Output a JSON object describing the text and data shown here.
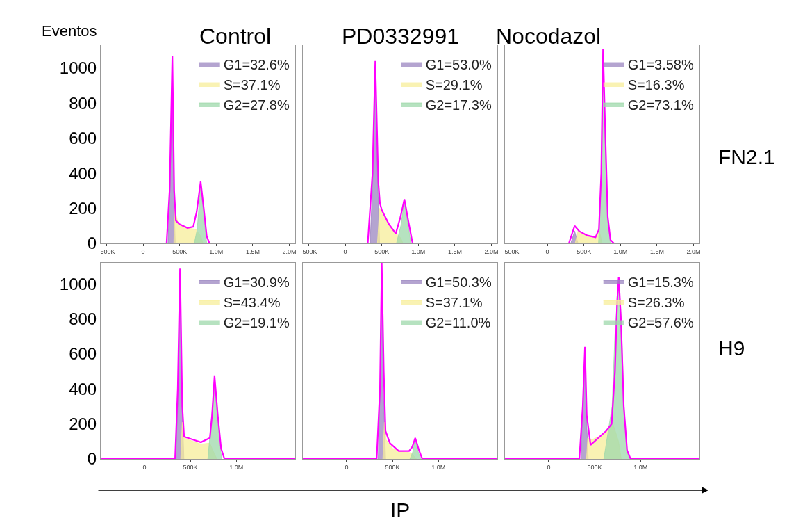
{
  "chart_data": [
    {
      "type": "area",
      "title": "Control",
      "ylabel": "Eventos",
      "legend": "top right",
      "xlim": [
        -580000,
        2080000
      ],
      "xticks": [
        {
          "value": -500000,
          "label": "-500K"
        },
        0,
        {
          "value": 500000,
          "label": "500K"
        },
        {
          "value": 1000000,
          "label": "1.0M"
        },
        {
          "value": 1500000,
          "label": "1.5M"
        },
        {
          "value": 2000000,
          "label": "2.0M"
        }
      ],
      "ylim": [
        0,
        1130
      ],
      "yticks": [
        0,
        200,
        400,
        600,
        800,
        1000
      ],
      "series": [
        {
          "name": "G1=32.6%",
          "color": "#9b86c0",
          "x": [
            340000,
            370000,
            400000,
            415000,
            440000
          ],
          "values": [
            0,
            350,
            1000,
            350,
            0
          ]
        },
        {
          "name": "S=37.1%",
          "color": "#f7ee9a",
          "x": [
            420000,
            430000,
            480000,
            600000,
            720000,
            790000,
            820000
          ],
          "values": [
            0,
            200,
            110,
            88,
            80,
            40,
            0
          ]
        },
        {
          "name": "G2=27.8%",
          "color": "#9ed8ab",
          "x": [
            700000,
            740000,
            787000,
            830000,
            870000
          ],
          "values": [
            0,
            80,
            340,
            150,
            0
          ]
        },
        {
          "type": "line",
          "color": "#ff00ff",
          "x": [
            -580000,
            321000,
            362000,
            400000,
            425000,
            448000,
            495000,
            607000,
            686000,
            733000,
            787000,
            829000,
            870000,
            908000,
            2080000
          ],
          "values": [
            0,
            0,
            300,
            1070,
            300,
            130,
            110,
            88,
            95,
            180,
            352,
            200,
            40,
            0,
            0
          ]
        }
      ]
    },
    {
      "type": "area",
      "title": "PD0332991",
      "legend": "top right",
      "tick_labels": "x",
      "xlim": [
        -580000,
        2080000
      ],
      "xticks": [
        {
          "value": -500000,
          "label": "-500K"
        },
        0,
        {
          "value": 500000,
          "label": "500K"
        },
        {
          "value": 1000000,
          "label": "1.0M"
        },
        {
          "value": 1500000,
          "label": "1.5M"
        },
        {
          "value": 2000000,
          "label": "2.0M"
        }
      ],
      "ylim": [
        0,
        1130
      ],
      "yticks": [
        0,
        200,
        400,
        600,
        800,
        1000
      ],
      "series": [
        {
          "name": "G1=53.0%",
          "color": "#9b86c0",
          "x": [
            340000,
            380000,
            411000,
            440000,
            470000
          ],
          "values": [
            0,
            400,
            1010,
            400,
            0
          ]
        },
        {
          "name": "S=29.1%",
          "color": "#f7ee9a",
          "x": [
            440000,
            470000,
            500000,
            600000,
            700000,
            760000,
            790000
          ],
          "values": [
            0,
            200,
            185,
            105,
            55,
            30,
            0
          ]
        },
        {
          "name": "G2=17.3%",
          "color": "#9ed8ab",
          "x": [
            700000,
            760000,
            809000,
            860000,
            900000
          ],
          "values": [
            0,
            100,
            240,
            100,
            0
          ]
        },
        {
          "type": "line",
          "color": "#ff00ff",
          "x": [
            -580000,
            308000,
            373000,
            411000,
            452000,
            474000,
            500000,
            596000,
            691000,
            755000,
            809000,
            866000,
            921000,
            2080000
          ],
          "values": [
            0,
            0,
            400,
            1040,
            350,
            230,
            190,
            110,
            56,
            150,
            252,
            120,
            0,
            0
          ]
        }
      ]
    },
    {
      "type": "area",
      "title": "Nocodazol",
      "legend": "top right",
      "tick_labels": "x",
      "annotations": [
        "FN2.1"
      ],
      "xlim": [
        -580000,
        2080000
      ],
      "xticks": [
        {
          "value": -500000,
          "label": "-500K"
        },
        0,
        {
          "value": 500000,
          "label": "500K"
        },
        {
          "value": 1000000,
          "label": "1.0M"
        },
        {
          "value": 1500000,
          "label": "1.5M"
        },
        {
          "value": 2000000,
          "label": "2.0M"
        }
      ],
      "ylim": [
        0,
        1130
      ],
      "yticks": [
        0,
        200,
        400,
        600,
        800,
        1000
      ],
      "series": [
        {
          "name": "G1=3.58%",
          "color": "#9b86c0",
          "x": [
            320000,
            373000,
            420000
          ],
          "values": [
            0,
            70,
            0
          ]
        },
        {
          "name": "S=16.3%",
          "color": "#f7ee9a",
          "x": [
            380000,
            420000,
            500000,
            660000,
            705000,
            750000
          ],
          "values": [
            0,
            70,
            50,
            35,
            81,
            0
          ]
        },
        {
          "name": "G2=73.1%",
          "color": "#9ed8ab",
          "x": [
            700000,
            740000,
            762000,
            790000,
            830000,
            870000
          ],
          "values": [
            0,
            400,
            1090,
            600,
            100,
            0
          ]
        },
        {
          "type": "line",
          "color": "#ff00ff",
          "x": [
            -580000,
            294000,
            373000,
            436000,
            547000,
            658000,
            705000,
            737000,
            762000,
            794000,
            826000,
            863000,
            911000,
            2080000
          ],
          "values": [
            0,
            0,
            100,
            70,
            45,
            35,
            80,
            400,
            1108,
            600,
            150,
            20,
            0,
            0
          ]
        }
      ]
    },
    {
      "type": "area",
      "legend": "top right",
      "xlim": [
        -475000,
        1640000
      ],
      "xticks": [
        0,
        {
          "value": 500000,
          "label": "500K"
        },
        {
          "value": 1000000,
          "label": "1.0M"
        }
      ],
      "ylim": [
        0,
        1120
      ],
      "yticks": [
        0,
        200,
        400,
        600,
        800,
        1000
      ],
      "series": [
        {
          "name": "G1=30.9%",
          "color": "#9b86c0",
          "x": [
            340000,
            370000,
            388000,
            405000,
            430000
          ],
          "values": [
            0,
            400,
            1080,
            400,
            0
          ]
        },
        {
          "name": "S=43.4%",
          "color": "#f7ee9a",
          "x": [
            395000,
            412000,
            432000,
            529000,
            615000,
            712000,
            760000,
            790000
          ],
          "values": [
            0,
            210,
            120,
            100,
            85,
            90,
            30,
            0
          ]
        },
        {
          "name": "G2=19.1%",
          "color": "#9ed8ab",
          "x": [
            690000,
            730000,
            763000,
            800000,
            840000
          ],
          "values": [
            0,
            230,
            440,
            200,
            0
          ]
        },
        {
          "type": "line",
          "color": "#ff00ff",
          "x": [
            -475000,
            334000,
            363000,
            388000,
            412000,
            432000,
            529000,
            615000,
            712000,
            736000,
            763000,
            798000,
            834000,
            871000,
            1640000
          ],
          "values": [
            0,
            0,
            400,
            1087,
            300,
            127,
            110,
            95,
            120,
            250,
            473,
            250,
            60,
            0,
            0
          ]
        }
      ]
    },
    {
      "type": "area",
      "xlabel": "IP",
      "legend": "top right",
      "tick_labels": "x",
      "xlim": [
        -475000,
        1640000
      ],
      "xticks": [
        0,
        {
          "value": 500000,
          "label": "500K"
        },
        {
          "value": 1000000,
          "label": "1.0M"
        }
      ],
      "ylim": [
        0,
        1120
      ],
      "yticks": [
        0,
        200,
        400,
        600,
        800,
        1000
      ],
      "series": [
        {
          "name": "G1=50.3%",
          "color": "#9b86c0",
          "x": [
            345000,
            370000,
            383000,
            400000,
            425000
          ],
          "values": [
            0,
            500,
            1100,
            400,
            0
          ]
        },
        {
          "name": "S=37.1%",
          "color": "#f7ee9a",
          "x": [
            395000,
            412000,
            430000,
            500000,
            600000,
            700000,
            760000
          ],
          "values": [
            0,
            210,
            110,
            60,
            42,
            35,
            0
          ]
        },
        {
          "name": "G2=11.0%",
          "color": "#9ed8ab",
          "x": [
            690000,
            720000,
            747000,
            780000,
            810000
          ],
          "values": [
            0,
            40,
            110,
            40,
            0
          ]
        },
        {
          "type": "line",
          "color": "#ff00ff",
          "x": [
            -475000,
            328000,
            364000,
            383000,
            405000,
            424000,
            472000,
            568000,
            680000,
            716000,
            747000,
            788000,
            824000,
            1640000
          ],
          "values": [
            0,
            0,
            400,
            1120,
            500,
            160,
            90,
            45,
            45,
            70,
            120,
            50,
            0,
            0
          ]
        }
      ]
    },
    {
      "type": "area",
      "legend": "top right",
      "tick_labels": "x",
      "annotations": [
        "H9"
      ],
      "xlim": [
        -475000,
        1640000
      ],
      "xticks": [
        0,
        {
          "value": 500000,
          "label": "500K"
        },
        {
          "value": 1000000,
          "label": "1.0M"
        }
      ],
      "ylim": [
        0,
        1120
      ],
      "yticks": [
        0,
        200,
        400,
        600,
        800,
        1000
      ],
      "series": [
        {
          "name": "G1=15.3%",
          "color": "#9b86c0",
          "x": [
            350000,
            371000,
            393000,
            410000,
            430000
          ],
          "values": [
            0,
            300,
            620,
            250,
            0
          ]
        },
        {
          "name": "S=26.3%",
          "color": "#f7ee9a",
          "x": [
            412000,
            425000,
            470000,
            600000,
            700000,
            760000,
            790000
          ],
          "values": [
            0,
            120,
            110,
            140,
            200,
            100,
            0
          ]
        },
        {
          "name": "G2=57.6%",
          "color": "#9ed8ab",
          "x": [
            600000,
            690000,
            720000,
            762000,
            790000,
            820000,
            850000,
            880000
          ],
          "values": [
            0,
            300,
            700,
            1030,
            800,
            300,
            50,
            0
          ]
        },
        {
          "type": "line",
          "color": "#ff00ff",
          "x": [
            -475000,
            334000,
            371000,
            395000,
            414000,
            456000,
            540000,
            625000,
            685000,
            721000,
            745000,
            762000,
            786000,
            817000,
            853000,
            891000,
            1640000
          ],
          "values": [
            0,
            0,
            300,
            640,
            250,
            80,
            120,
            160,
            200,
            500,
            900,
            1040,
            800,
            300,
            50,
            0,
            0
          ]
        }
      ]
    }
  ]
}
